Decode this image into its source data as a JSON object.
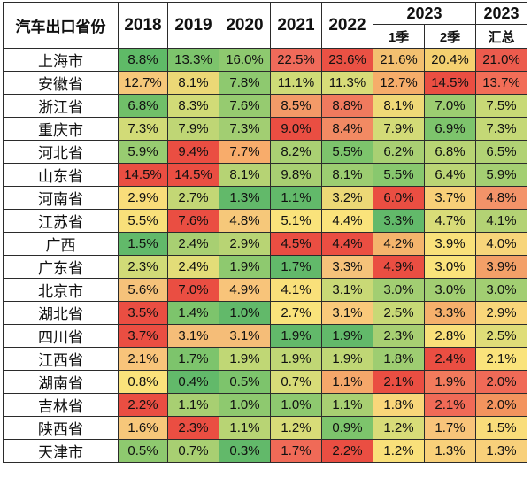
{
  "header": {
    "corner": "汽车出口省份",
    "years": [
      "2018",
      "2019",
      "2020",
      "2021",
      "2022"
    ],
    "group_2023": "2023",
    "sub_2023": [
      "1季",
      "2季"
    ],
    "total_year": "2023",
    "total_label": "汇总"
  },
  "colors": {
    "high": "#e8463a",
    "mid": "#f9e27a",
    "low": "#62b96a"
  },
  "rows": [
    {
      "name": "上海市",
      "values": [
        "8.8%",
        "13.3%",
        "16.0%",
        "22.5%",
        "23.6%",
        "21.6%",
        "20.4%",
        "21.0%"
      ],
      "colors": [
        "#5fba67",
        "#7dc46c",
        "#8ec96f",
        "#f06a5a",
        "#ea5144",
        "#f3c070",
        "#f5d070",
        "#ec5b4d"
      ]
    },
    {
      "name": "安徽省",
      "values": [
        "12.7%",
        "8.1%",
        "7.8%",
        "11.1%",
        "11.3%",
        "12.7%",
        "14.5%",
        "13.7%"
      ],
      "colors": [
        "#f6c87a",
        "#ecd876",
        "#8ec96f",
        "#cfdb77",
        "#d8dc78",
        "#f6ad6a",
        "#ea4e42",
        "#f26d57"
      ]
    },
    {
      "name": "浙江省",
      "values": [
        "6.8%",
        "8.3%",
        "7.6%",
        "8.5%",
        "8.8%",
        "8.1%",
        "7.0%",
        "7.5%"
      ],
      "colors": [
        "#70bf69",
        "#d1db77",
        "#96cb70",
        "#f39a68",
        "#f07a5e",
        "#efd977",
        "#9ccd71",
        "#c8d976"
      ]
    },
    {
      "name": "重庆市",
      "values": [
        "7.3%",
        "7.9%",
        "7.3%",
        "9.0%",
        "8.4%",
        "7.9%",
        "6.9%",
        "7.3%"
      ],
      "colors": [
        "#d2db77",
        "#bfd675",
        "#a2ce72",
        "#ea4e42",
        "#f28a63",
        "#d3db77",
        "#7dc46c",
        "#c4d876"
      ]
    },
    {
      "name": "河北省",
      "values": [
        "5.9%",
        "9.4%",
        "7.7%",
        "8.2%",
        "5.5%",
        "6.2%",
        "6.8%",
        "6.5%"
      ],
      "colors": [
        "#98cc71",
        "#ea4e42",
        "#f8ac6b",
        "#aad073",
        "#7dc46c",
        "#a9d073",
        "#b8d474",
        "#b1d274"
      ]
    },
    {
      "name": "山东省",
      "values": [
        "14.5%",
        "14.5%",
        "8.1%",
        "9.8%",
        "8.1%",
        "5.5%",
        "6.4%",
        "5.9%"
      ],
      "colors": [
        "#ea4e42",
        "#ea4e42",
        "#b6d374",
        "#a8cf72",
        "#9ccd71",
        "#88c86e",
        "#bbd575",
        "#a4cf72"
      ]
    },
    {
      "name": "河南省",
      "values": [
        "2.9%",
        "2.7%",
        "1.3%",
        "1.1%",
        "3.2%",
        "6.0%",
        "3.7%",
        "4.8%"
      ],
      "colors": [
        "#f9dd7a",
        "#c3d775",
        "#62b96a",
        "#62b96a",
        "#ecd876",
        "#ea4e42",
        "#f8cf78",
        "#f39369"
      ]
    },
    {
      "name": "江苏省",
      "values": [
        "5.5%",
        "7.6%",
        "4.8%",
        "5.1%",
        "4.4%",
        "3.3%",
        "4.7%",
        "4.1%"
      ],
      "colors": [
        "#f8e07a",
        "#ea4e42",
        "#f6c87a",
        "#fae37b",
        "#fae37b",
        "#62b96a",
        "#d8dc78",
        "#b3d274"
      ]
    },
    {
      "name": "广西",
      "values": [
        "1.5%",
        "2.4%",
        "2.9%",
        "4.5%",
        "4.4%",
        "4.2%",
        "3.9%",
        "4.0%"
      ],
      "colors": [
        "#62b96a",
        "#a8cf72",
        "#b8d474",
        "#ea4e42",
        "#ea4e42",
        "#f4b46c",
        "#f9e17a",
        "#f7d57a"
      ]
    },
    {
      "name": "广东省",
      "values": [
        "2.3%",
        "2.4%",
        "1.9%",
        "1.7%",
        "3.3%",
        "4.9%",
        "3.0%",
        "3.9%"
      ],
      "colors": [
        "#d1db77",
        "#e3dd78",
        "#8ec96f",
        "#62b96a",
        "#f5c27a",
        "#ea4e42",
        "#fae37b",
        "#f3a068"
      ]
    },
    {
      "name": "北京市",
      "values": [
        "5.6%",
        "7.0%",
        "4.9%",
        "4.1%",
        "3.1%",
        "3.0%",
        "3.0%",
        "3.0%"
      ],
      "colors": [
        "#f5c27a",
        "#ea4e42",
        "#f8c47a",
        "#f9e07a",
        "#c9d976",
        "#a2ce72",
        "#a2ce72",
        "#a2ce72"
      ]
    },
    {
      "name": "湖北省",
      "values": [
        "3.5%",
        "1.4%",
        "1.0%",
        "2.7%",
        "3.1%",
        "2.5%",
        "3.3%",
        "2.9%"
      ],
      "colors": [
        "#ea4e42",
        "#7dc46c",
        "#62b96a",
        "#fae37b",
        "#f9c97a",
        "#c8d976",
        "#f6b06c",
        "#f9d67a"
      ]
    },
    {
      "name": "四川省",
      "values": [
        "3.7%",
        "3.1%",
        "3.1%",
        "1.9%",
        "1.9%",
        "2.3%",
        "2.8%",
        "2.5%"
      ],
      "colors": [
        "#ea4e42",
        "#f5bd78",
        "#f5bd78",
        "#62b96a",
        "#62b96a",
        "#a8cf72",
        "#f9e07a",
        "#dfdd78"
      ]
    },
    {
      "name": "江西省",
      "values": [
        "2.1%",
        "1.7%",
        "1.9%",
        "1.9%",
        "1.9%",
        "1.8%",
        "2.4%",
        "2.1%"
      ],
      "colors": [
        "#f8c47a",
        "#7dc46c",
        "#c0d775",
        "#c0d775",
        "#c0d775",
        "#9ecd71",
        "#ea4e42",
        "#fae37b"
      ]
    },
    {
      "name": "湖南省",
      "values": [
        "0.8%",
        "0.4%",
        "0.5%",
        "0.7%",
        "1.1%",
        "2.1%",
        "1.9%",
        "2.0%"
      ],
      "colors": [
        "#fae37b",
        "#62b96a",
        "#7dc46c",
        "#d8dc78",
        "#f5a76a",
        "#ea4e42",
        "#f27a5c",
        "#f06a57"
      ]
    },
    {
      "name": "吉林省",
      "values": [
        "2.2%",
        "1.1%",
        "1.0%",
        "1.0%",
        "1.1%",
        "1.8%",
        "2.1%",
        "2.0%"
      ],
      "colors": [
        "#ea4e42",
        "#a8cf72",
        "#8ec96f",
        "#8ec96f",
        "#a8cf72",
        "#f9d67a",
        "#f06a57",
        "#f3945e"
      ]
    },
    {
      "name": "陕西省",
      "values": [
        "1.6%",
        "2.3%",
        "1.1%",
        "1.2%",
        "0.9%",
        "1.2%",
        "1.7%",
        "1.5%"
      ],
      "colors": [
        "#f7c77a",
        "#ea4e42",
        "#b8d474",
        "#d8dc78",
        "#7dc46c",
        "#d8dc78",
        "#f8c47a",
        "#f9dd7a"
      ]
    },
    {
      "name": "天津市",
      "values": [
        "0.5%",
        "0.7%",
        "0.3%",
        "1.7%",
        "2.2%",
        "1.2%",
        "1.3%",
        "1.3%"
      ],
      "colors": [
        "#8ec96f",
        "#a8cf72",
        "#62b96a",
        "#f06a57",
        "#ea4e42",
        "#f9e07a",
        "#f8d07a",
        "#f8d07a"
      ]
    }
  ]
}
